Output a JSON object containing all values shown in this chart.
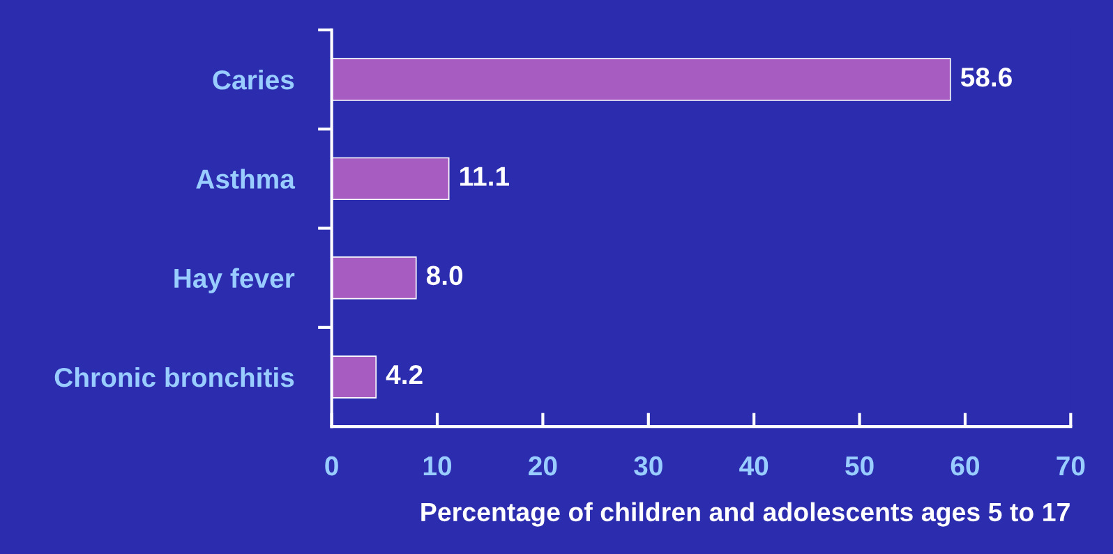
{
  "chart_data": {
    "type": "bar",
    "orientation": "horizontal",
    "categories": [
      "Caries",
      "Asthma",
      "Hay fever",
      "Chronic bronchitis"
    ],
    "values": [
      58.6,
      11.1,
      8.0,
      4.2
    ],
    "color": "#a65cc0",
    "xlim": [
      0,
      70
    ],
    "xticks": [
      0,
      10,
      20,
      30,
      40,
      50,
      60,
      70
    ],
    "xlabel": "Percentage of children and adolescents ages 5 to 17",
    "value_labels": [
      "58.6",
      "11.1",
      "8.0",
      "4.2"
    ],
    "grid": false,
    "legend": false
  }
}
